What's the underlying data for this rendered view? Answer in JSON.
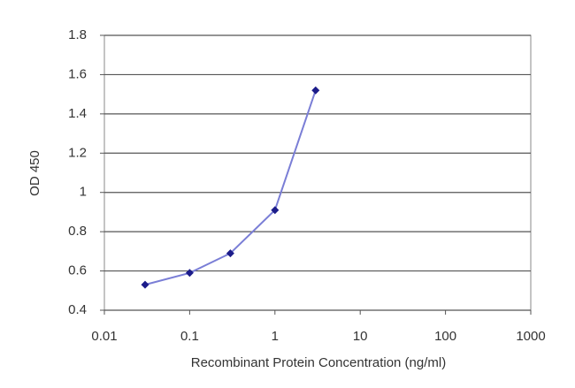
{
  "chart_data": {
    "type": "line",
    "x_label": "Recombinant Protein Concentration (ng/ml)",
    "y_label": "OD 450",
    "x": [
      0.03,
      0.1,
      0.3,
      1,
      3
    ],
    "values": [
      0.53,
      0.59,
      0.69,
      0.91,
      1.52
    ],
    "color": "#7a7ed6",
    "marker_color": "#1c1c8a",
    "xscale": "log",
    "xlim": [
      0.01,
      1000
    ],
    "xticks": [
      0.01,
      0.1,
      1,
      10,
      100,
      1000
    ],
    "ylim": [
      0.4,
      1.8
    ],
    "yticks": [
      0.4,
      0.6,
      0.8,
      1,
      1.2,
      1.4,
      1.6,
      1.8
    ],
    "grid": true
  }
}
